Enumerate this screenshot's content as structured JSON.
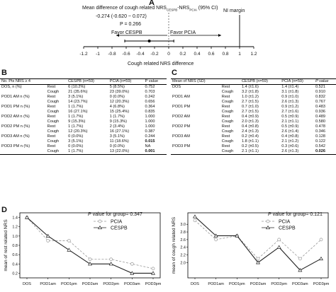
{
  "panelA": {
    "letter": "A",
    "title_main": "Mean difference of cough related NRS",
    "title_sub1": "CESPB",
    "title_mid": "-NRS",
    "title_sub2": "PCIA",
    "title_end": " (95% CI)",
    "ci_text": "-0.274 (-0.620 ~ 0.072)",
    "p_text": "P = 0.266",
    "favor_cespb": "Favor CESPB",
    "favor_pcia": "Favor PCIA",
    "ni_margin": "NI margin",
    "axis_label": "Cough related NRS difference"
  },
  "panelB": {
    "letter": "B",
    "headers": [
      "No. Pts NRS ≥ 4",
      "",
      "CESPB (n=59)",
      "PCIA (n=59)",
      "P value"
    ],
    "rows": [
      {
        "day": "DOS, n (%)",
        "type": "Rest",
        "cespb": "6 (10.2%)",
        "pcia": "5 (8.5%)",
        "p": "0.752",
        "bold": false
      },
      {
        "day": "",
        "type": "Cough",
        "cespb": "21 (35.6%)",
        "pcia": "23 (39.0%)",
        "p": "0.703",
        "bold": false
      },
      {
        "day": "POD1 AM n (%)",
        "type": "Rest",
        "cespb": "3 (5.1%)",
        "pcia": "0 (0.0%)",
        "p": "0.242",
        "bold": false
      },
      {
        "day": "",
        "type": "Cough",
        "cespb": "14 (23.7%)",
        "pcia": "12 (20.3%)",
        "p": "0.656",
        "bold": false
      },
      {
        "day": "POD1 PM n (%)",
        "type": "Rest",
        "cespb": "1 (1.7%)",
        "pcia": "4 (6.8%)",
        "p": "0.364",
        "bold": false
      },
      {
        "day": "",
        "type": "Cough",
        "cespb": "16 (27.1%)",
        "pcia": "15 (25.4%)",
        "p": "0.835",
        "bold": false
      },
      {
        "day": "POD2 AM n (%)",
        "type": "Rest",
        "cespb": "1 (1.7%)",
        "pcia": "1 (1.7%)",
        "p": "1.000",
        "bold": false
      },
      {
        "day": "",
        "type": "Cough",
        "cespb": "9 (15.3%)",
        "pcia": "9 (15.3%)",
        "p": "1.000",
        "bold": false
      },
      {
        "day": "POD2 PM n (%)",
        "type": "Rest",
        "cespb": "1 (1.7%)",
        "pcia": "2 (3.4%)",
        "p": "1.000",
        "bold": false
      },
      {
        "day": "",
        "type": "Cough",
        "cespb": "12 (20.3%)",
        "pcia": "16 (27.1%)",
        "p": "0.387",
        "bold": false
      },
      {
        "day": "POD3 AM n (%)",
        "type": "Rest",
        "cespb": "0 (0.0%)",
        "pcia": "3 (5.1%)",
        "p": "0.244",
        "bold": false
      },
      {
        "day": "",
        "type": "Cough",
        "cespb": "3 (5.1%)",
        "pcia": "11 (18.6%)",
        "p": "0.015",
        "bold": true
      },
      {
        "day": "POD3 PM n (%)",
        "type": "Rest",
        "cespb": "0 (0.0%)",
        "pcia": "0 (0.0%)",
        "p": "NA",
        "bold": false
      },
      {
        "day": "",
        "type": "Cough",
        "cespb": "1 (1.7%)",
        "pcia": "13 (22.0%)",
        "p": "0.001",
        "bold": true
      }
    ]
  },
  "panelC": {
    "letter": "C",
    "headers": [
      "Mean of NRS (SD)",
      "",
      "CESPB (n=59)",
      "PCIA (n=59)",
      "P value"
    ],
    "rows": [
      {
        "day": "DOS",
        "type": "Rest",
        "cespb": "1.4 (±1.6)",
        "pcia": "1.4 (±1.4)",
        "p": "0.521",
        "bold": false
      },
      {
        "day": "",
        "type": "Cough",
        "cespb": "3.2 (±1.8)",
        "pcia": "3.1 (±1.8)",
        "p": "0.910",
        "bold": false
      },
      {
        "day": "POD1 AM",
        "type": "Rest",
        "cespb": "1.0 (±1.2)",
        "pcia": "0.9 (±1.0)",
        "p": "0.832",
        "bold": false
      },
      {
        "day": "",
        "type": "Cough",
        "cespb": "2.7 (±1.5)",
        "pcia": "2.6 (±1.3)",
        "p": "0.767",
        "bold": false
      },
      {
        "day": "POD1 PM",
        "type": "Rest",
        "cespb": "0.7 (±1.0)",
        "pcia": "0.9 (±1.2)",
        "p": "0.483",
        "bold": false
      },
      {
        "day": "",
        "type": "Cough",
        "cespb": "2.7 (±1.5)",
        "pcia": "2.7 (±1.6)",
        "p": "0.936",
        "bold": false
      },
      {
        "day": "POD2 AM",
        "type": "Rest",
        "cespb": "0.4 (±0.9)",
        "pcia": "0.5 (±0.9)",
        "p": "0.489",
        "bold": false
      },
      {
        "day": "",
        "type": "Cough",
        "cespb": "2.0 (±1.3)",
        "pcia": "2.1 (±1.1)",
        "p": "0.580",
        "bold": false
      },
      {
        "day": "POD2 PM",
        "type": "Rest",
        "cespb": "0.4 (±0.8)",
        "pcia": "0.5 (±0.9)",
        "p": "0.478",
        "bold": false
      },
      {
        "day": "",
        "type": "Cough",
        "cespb": "2.4 (±1.3)",
        "pcia": "2.6 (±1.4)",
        "p": "0.346",
        "bold": false
      },
      {
        "day": "POD3 AM",
        "type": "Rest",
        "cespb": "0.2 (±0.4)",
        "pcia": "0.4 (±0.8)",
        "p": "0.128",
        "bold": false
      },
      {
        "day": "",
        "type": "Cough",
        "cespb": "1.8 (±1.1)",
        "pcia": "2.1 (±1.2)",
        "p": "0.122",
        "bold": false
      },
      {
        "day": "POD3 PM",
        "type": "Rest",
        "cespb": "0.2 (±0.5)",
        "pcia": "0.3 (±0.6)",
        "p": "0.542",
        "bold": false
      },
      {
        "day": "",
        "type": "Cough",
        "cespb": "2.1 (±1.1)",
        "pcia": "2.6 (±1.3)",
        "p": "0.026",
        "bold": true
      }
    ]
  },
  "panelD": {
    "letter": "D",
    "p_prefix_italic": "P",
    "left_p_text": " value for group= 0.347",
    "right_p_text": " value for group= 0.121"
  },
  "chart_data": [
    {
      "type": "forest",
      "estimate": -0.274,
      "ci": [
        -0.62,
        0.072
      ],
      "ni_margin": 1,
      "xlim": [
        -1.2,
        1.2
      ],
      "xticks": [
        "-1.2",
        "-1",
        "-0.8",
        "-0.6",
        "-0.4",
        "-0.2",
        "0",
        "0.2",
        "0.4",
        "0.6",
        "0.8",
        "1",
        "1.2"
      ],
      "xlabel": "Cough related NRS difference",
      "title": "Mean difference of cough related NRS CESPB-NRS PCIA (95% CI)"
    },
    {
      "type": "line",
      "categories": [
        "DOS",
        "POD1am",
        "POD1pm",
        "POD2am",
        "POD2pm",
        "POD3am",
        "POD3pm"
      ],
      "ylabel": "mean of rest related NRS",
      "ylim": [
        0.1,
        1.5
      ],
      "yticks": [
        "0.2",
        "0.4",
        "0.6",
        "0.8",
        "1.0",
        "1.2",
        "1.4"
      ],
      "series": [
        {
          "name": "PCIA",
          "values": [
            1.4,
            0.9,
            0.9,
            0.5,
            0.5,
            0.4,
            0.3
          ],
          "color": "#999999",
          "dashed": true,
          "marker": "circle"
        },
        {
          "name": "CESPB",
          "values": [
            1.4,
            1.0,
            0.7,
            0.4,
            0.4,
            0.2,
            0.2
          ],
          "color": "#222222",
          "dashed": false,
          "marker": "triangle"
        }
      ],
      "p_value_for_group": 0.347
    },
    {
      "type": "line",
      "categories": [
        "DOS",
        "POD1am",
        "POD1pm",
        "POD2am",
        "POD2pm",
        "POD3am",
        "POD3pm"
      ],
      "ylabel": "mean of cough related NRS",
      "ylim": [
        1.6,
        3.3
      ],
      "yticks": [
        "2.0",
        "2.2",
        "2.4",
        "2.6",
        "2.8",
        "3.0"
      ],
      "series": [
        {
          "name": "PCIA",
          "values": [
            3.1,
            2.6,
            2.7,
            2.1,
            2.6,
            2.1,
            2.6
          ],
          "color": "#999999",
          "dashed": true,
          "marker": "circle"
        },
        {
          "name": "CESPB",
          "values": [
            3.2,
            2.7,
            2.7,
            2.0,
            2.4,
            1.8,
            2.1
          ],
          "color": "#222222",
          "dashed": false,
          "marker": "triangle"
        }
      ],
      "p_value_for_group": 0.121
    }
  ]
}
